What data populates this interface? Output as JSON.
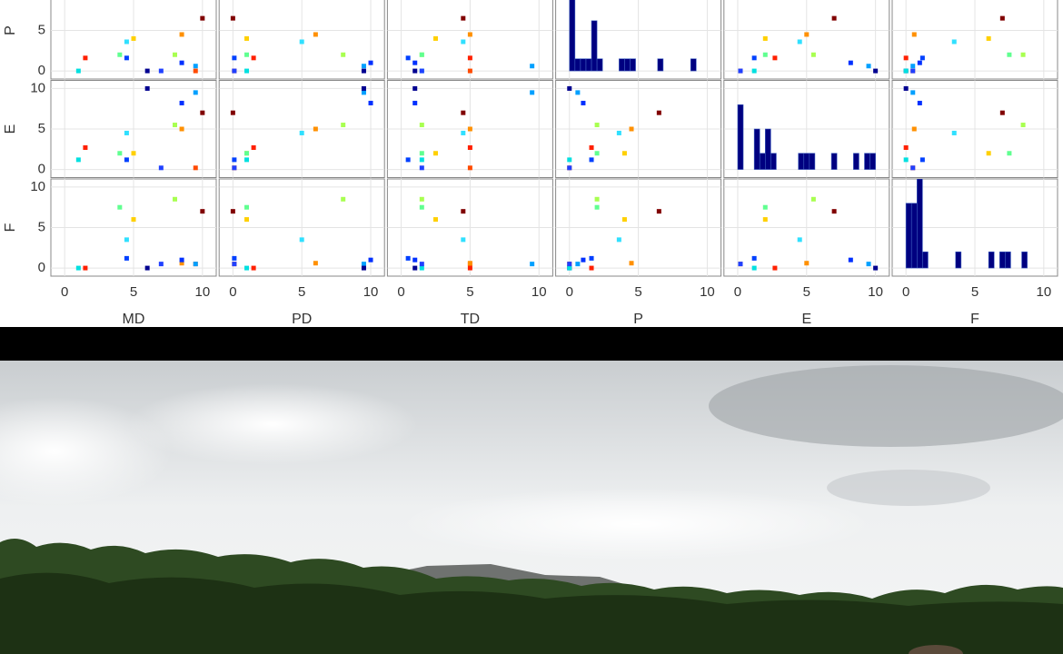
{
  "chart_data": {
    "type": "scatter_matrix",
    "x_labels": [
      "MD",
      "PD",
      "TD",
      "P",
      "E",
      "F"
    ],
    "y_labels": [
      "P",
      "E",
      "F"
    ],
    "xlim": [
      -1,
      11
    ],
    "xticks": [
      0,
      5,
      10
    ],
    "ylim": [
      -1,
      11
    ],
    "yticks": [
      0,
      5,
      10
    ],
    "grid": true,
    "hist_color": "#000080",
    "points": [
      {
        "color": "#800000",
        "values": [
          10,
          0,
          4.5,
          6.5,
          7,
          7
        ]
      },
      {
        "color": "#ff2000",
        "values": [
          1.5,
          1.5,
          5,
          1.6,
          2.7,
          0
        ]
      },
      {
        "color": "#ff4a00",
        "values": [
          9.5,
          0.1,
          5,
          0,
          0.2,
          0.5
        ]
      },
      {
        "color": "#ff9000",
        "values": [
          8.5,
          6,
          5,
          4.5,
          5,
          0.6
        ]
      },
      {
        "color": "#ffd000",
        "values": [
          5,
          1,
          2.5,
          4,
          2,
          6
        ]
      },
      {
        "color": "#a8ff50",
        "values": [
          8,
          8,
          1.5,
          2,
          5.5,
          8.5
        ]
      },
      {
        "color": "#30e0ff",
        "values": [
          4.5,
          5,
          4.5,
          3.6,
          4.5,
          3.5
        ]
      },
      {
        "color": "#00a0ff",
        "values": [
          9.5,
          9.5,
          9.5,
          0.6,
          9.5,
          0.5
        ]
      },
      {
        "color": "#0030ff",
        "values": [
          8.5,
          10,
          1,
          1,
          8.2,
          1
        ]
      },
      {
        "color": "#000090",
        "values": [
          6,
          9.5,
          1,
          0,
          10,
          0
        ]
      },
      {
        "color": "#00e0e0",
        "values": [
          1,
          1,
          1.5,
          0,
          1.2,
          0
        ]
      },
      {
        "color": "#0040ff",
        "values": [
          4.5,
          0.1,
          0.5,
          1.6,
          1.2,
          1.2
        ]
      },
      {
        "color": "#2040ff",
        "values": [
          7,
          0.1,
          1.5,
          0,
          0.2,
          0.5
        ]
      },
      {
        "color": "#60ff90",
        "values": [
          4,
          1,
          1.5,
          2,
          2,
          7.5
        ]
      }
    ],
    "histograms": [
      {
        "bins": [
          0,
          0.4,
          0.8,
          1.2,
          1.6,
          2,
          2.4,
          2.8,
          3.2,
          3.6,
          4,
          4.4,
          4.8,
          5.2,
          5.6,
          6,
          6.4,
          6.8,
          7.2,
          7.6,
          8,
          8.4,
          8.8,
          9.2
        ],
        "counts": [
          12,
          1.5,
          1.5,
          1.5,
          6.2,
          1.5,
          0,
          0,
          0,
          1.5,
          1.5,
          1.5,
          0,
          0,
          0,
          0,
          1.5,
          0,
          0,
          0,
          0,
          0,
          1.5
        ]
      },
      {
        "bins": [
          0,
          0.4,
          0.8,
          1.2,
          1.6,
          2,
          2.4,
          2.8,
          3.2,
          3.6,
          4,
          4.4,
          4.8,
          5.2,
          5.6,
          6,
          6.4,
          6.8,
          7.2,
          7.6,
          8,
          8.4,
          8.8,
          9.2,
          9.6,
          10
        ],
        "counts": [
          8,
          0,
          0,
          5,
          2,
          5,
          2,
          0,
          0,
          0,
          0,
          2,
          2,
          2,
          0,
          0,
          0,
          2,
          0,
          0,
          0,
          2,
          0,
          2,
          2
        ]
      },
      {
        "bins": [
          0,
          0.4,
          0.8,
          1.2,
          1.6,
          2,
          2.4,
          2.8,
          3.2,
          3.6,
          4,
          4.4,
          4.8,
          5.2,
          5.6,
          6,
          6.4,
          6.8,
          7.2,
          7.6,
          8,
          8.4,
          8.8
        ],
        "counts": [
          8,
          8,
          11,
          2,
          0,
          0,
          0,
          0,
          0,
          2,
          0,
          0,
          0,
          0,
          0,
          2,
          0,
          2,
          2,
          0,
          0,
          2
        ]
      }
    ]
  }
}
